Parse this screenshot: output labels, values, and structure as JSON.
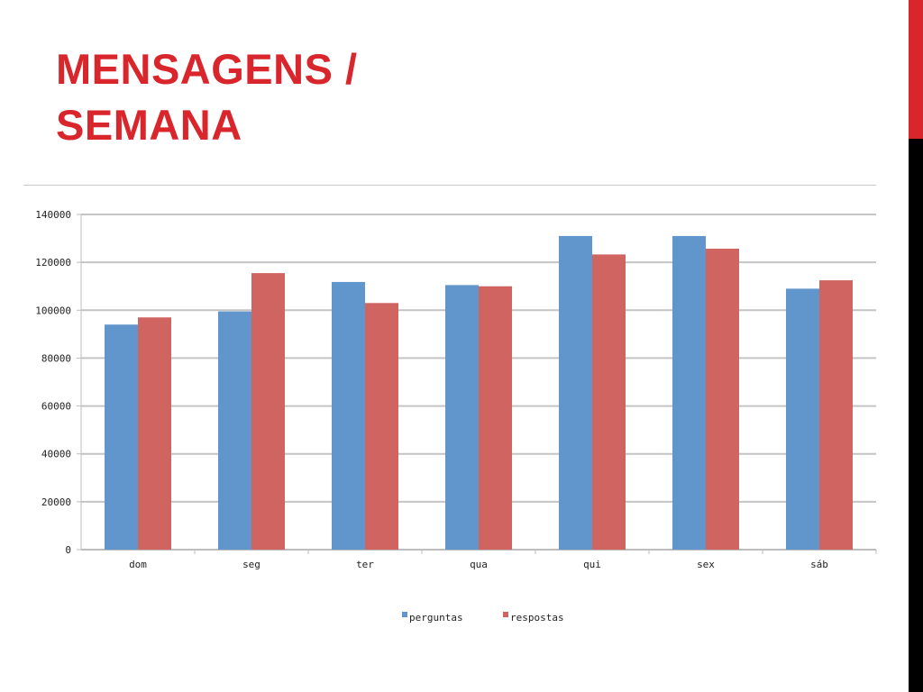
{
  "slide": {
    "title_line1": "MENSAGENS /",
    "title_line2": "SEMANA",
    "accent_color": "#d9262c"
  },
  "chart_data": {
    "type": "bar",
    "categories": [
      "dom",
      "seg",
      "ter",
      "qua",
      "qui",
      "sex",
      "sáb"
    ],
    "series": [
      {
        "name": "perguntas",
        "color": "#6096cc",
        "values": [
          94000,
          99500,
          111800,
          110500,
          131000,
          131000,
          109000
        ]
      },
      {
        "name": "respostas",
        "color": "#cf6460",
        "values": [
          97000,
          115500,
          103000,
          110000,
          123300,
          125700,
          112500
        ]
      }
    ],
    "ylim": [
      0,
      140000
    ],
    "yticks": [
      "0",
      "20000",
      "40000",
      "60000",
      "80000",
      "100000",
      "120000",
      "140000"
    ],
    "grid": true,
    "legend": "bottom",
    "title": "",
    "xlabel": "",
    "ylabel": ""
  }
}
